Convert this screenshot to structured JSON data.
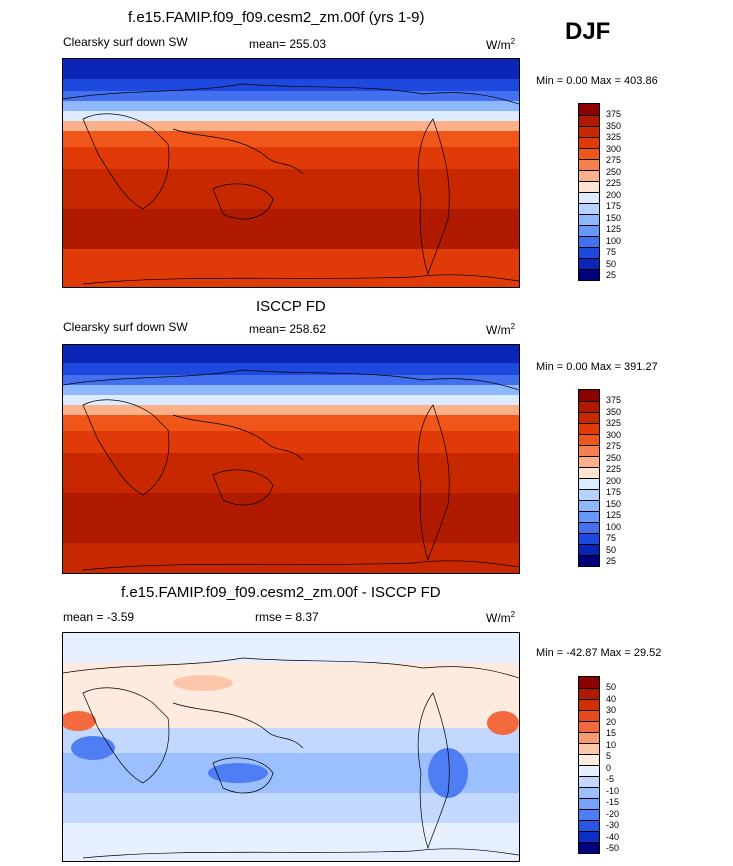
{
  "season": "DJF",
  "panels": [
    {
      "title": "f.e15.FAMIP.f09_f09.cesm2_zm.00f (yrs 1-9)",
      "left": "Clearsky surf down SW",
      "mid": "mean= 255.03",
      "unit": "W/m",
      "unit_sup": "2",
      "minmax": "Min =    0.00 Max = 403.86",
      "levels": [
        "375",
        "350",
        "325",
        "300",
        "275",
        "250",
        "225",
        "200",
        "175",
        "150",
        "125",
        "100",
        "75",
        "50",
        "25"
      ],
      "colors": [
        "#8b0000",
        "#b01a00",
        "#c82800",
        "#df3a07",
        "#f0561a",
        "#f58050",
        "#fbb08a",
        "#fde4d2",
        "#dcebff",
        "#b6d2ff",
        "#8db7ff",
        "#6898f7",
        "#4270ef",
        "#1e49df",
        "#0b25b9",
        "#000078"
      ]
    },
    {
      "title": "ISCCP FD",
      "left": "Clearsky surf down SW",
      "mid": "mean= 258.62",
      "unit": "W/m",
      "unit_sup": "2",
      "minmax": "Min =    0.00 Max = 391.27",
      "levels": [
        "375",
        "350",
        "325",
        "300",
        "275",
        "250",
        "225",
        "200",
        "175",
        "150",
        "125",
        "100",
        "75",
        "50",
        "25"
      ],
      "colors": [
        "#8b0000",
        "#b01a00",
        "#c82800",
        "#df3a07",
        "#f0561a",
        "#f58050",
        "#fbb08a",
        "#fde4d2",
        "#dcebff",
        "#b6d2ff",
        "#8db7ff",
        "#6898f7",
        "#4270ef",
        "#1e49df",
        "#0b25b9",
        "#000078"
      ]
    },
    {
      "title": "f.e15.FAMIP.f09_f09.cesm2_zm.00f - ISCCP FD",
      "left": "mean =  -3.59",
      "mid": "rmse =    8.37",
      "unit": "W/m",
      "unit_sup": "2",
      "minmax": "Min = -42.87 Max =  29.52",
      "levels": [
        "50",
        "40",
        "30",
        "20",
        "15",
        "10",
        "5",
        "0",
        "-5",
        "-10",
        "-15",
        "-20",
        "-30",
        "-40",
        "-50"
      ],
      "colors": [
        "#8b0000",
        "#b01a00",
        "#d02f00",
        "#e8491b",
        "#f26a3e",
        "#f89b74",
        "#fcc6aa",
        "#fdebe0",
        "#e6f0ff",
        "#c2d8ff",
        "#9cc0ff",
        "#77a2fb",
        "#4f7df3",
        "#2a55e6",
        "#0f2fc4",
        "#000080"
      ]
    }
  ]
}
